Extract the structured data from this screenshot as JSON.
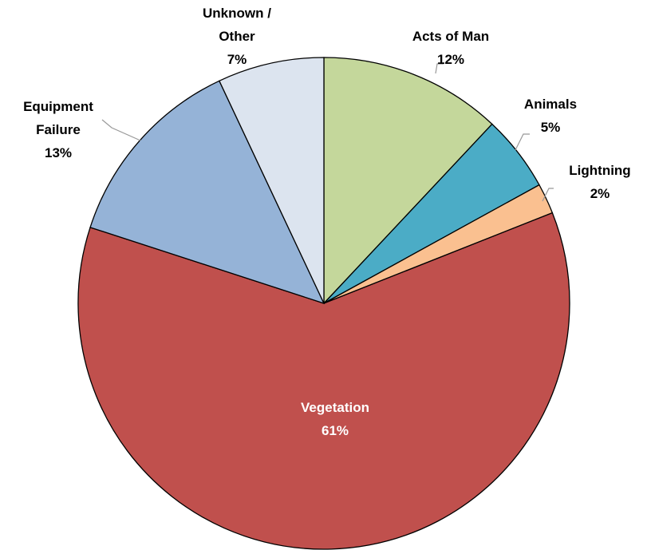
{
  "chart_data": {
    "type": "pie",
    "categories": [
      "Acts of Man",
      "Animals",
      "Lightning",
      "Vegetation",
      "Equipment Failure",
      "Unknown / Other"
    ],
    "values": [
      12,
      5,
      2,
      61,
      13,
      7
    ],
    "value_labels": [
      "12%",
      "5%",
      "2%",
      "61%",
      "13%",
      "7%"
    ],
    "colors": [
      "#c4d79b",
      "#4bacc6",
      "#fac090",
      "#c0504d",
      "#95b3d7",
      "#dce4ef"
    ]
  }
}
